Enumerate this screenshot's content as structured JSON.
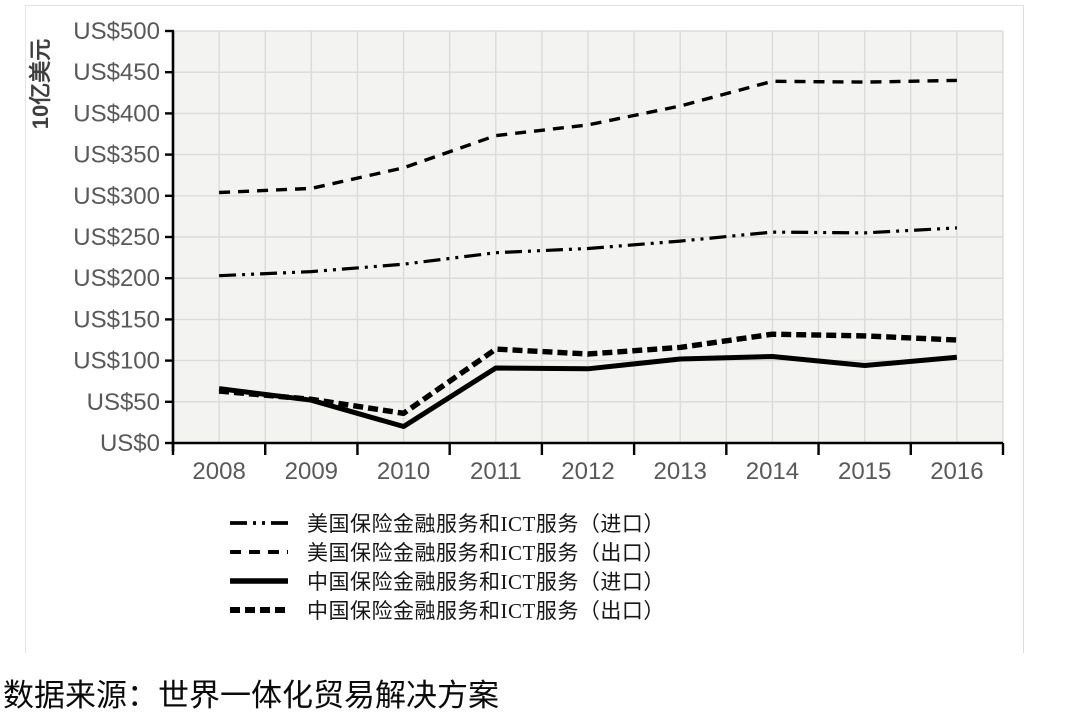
{
  "source_note": "数据来源：世界一体化贸易解决方案",
  "chart_data": {
    "type": "line",
    "title": "",
    "xlabel": "",
    "ylabel": "10亿美元",
    "ylim": [
      0,
      500
    ],
    "y_step": 50,
    "y_tick_prefix": "US$",
    "y_tick_labels": [
      "US$0",
      "US$50",
      "US$100",
      "US$150",
      "US$200",
      "US$250",
      "US$300",
      "US$350",
      "US$400",
      "US$450",
      "US$500"
    ],
    "categories": [
      "2008",
      "2009",
      "2010",
      "2011",
      "2012",
      "2013",
      "2014",
      "2015",
      "2016"
    ],
    "grid": true,
    "minor_vertical_grid": true,
    "legend_position": "bottom-left",
    "line_color": "#000000",
    "tick_label_color": "#595959",
    "axis_title_color": "#3f3f3f",
    "plot_background": "#f3f3f2",
    "gridline_color": "#dbdbd9",
    "series": [
      {
        "name": "美国保险金融服务和ICT服务（进口）",
        "style": "dash-dot-dot",
        "values": [
          203,
          208,
          217,
          231,
          236,
          245,
          256,
          255,
          261
        ]
      },
      {
        "name": "美国保险金融服务和ICT服务（出口）",
        "style": "dashed",
        "values": [
          304,
          309,
          334,
          373,
          386,
          409,
          439,
          438,
          440
        ]
      },
      {
        "name": "中国保险金融服务和ICT服务（进口）",
        "style": "solid",
        "values": [
          66,
          52,
          20,
          91,
          90,
          102,
          105,
          94,
          104
        ]
      },
      {
        "name": "中国保险金融服务和ICT服务（出口）",
        "style": "bold-dashed",
        "values": [
          63,
          53,
          36,
          114,
          108,
          116,
          132,
          130,
          125
        ]
      }
    ]
  }
}
